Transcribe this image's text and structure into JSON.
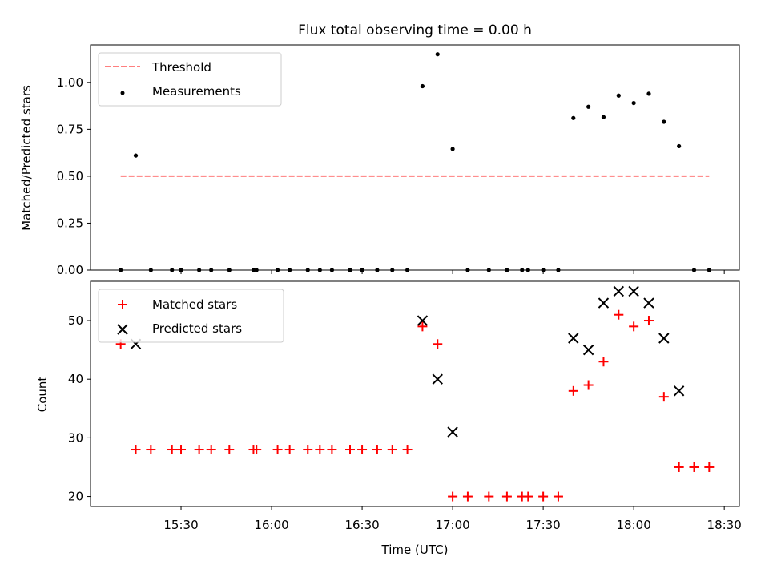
{
  "title": "Flux total observing time = 0.00 h",
  "xlabel": "Time (UTC)",
  "colors": {
    "threshold": "#ff7f7f",
    "measurements": "#000000",
    "matched": "#ff0000",
    "predicted": "#000000"
  },
  "chart_data": [
    {
      "type": "scatter",
      "panel": "top",
      "ylabel": "Matched/Predicted stars",
      "xlim": [
        "15:00",
        "18:35"
      ],
      "ylim": [
        0,
        1.2
      ],
      "yticks": [
        "0.00",
        "0.25",
        "0.50",
        "0.75",
        "1.00"
      ],
      "legend": [
        "Threshold",
        "Measurements"
      ],
      "legend_position": "top-left",
      "threshold": {
        "name": "Threshold",
        "value": 0.5,
        "x": [
          "15:10",
          "18:25"
        ]
      },
      "measurements": {
        "name": "Measurements",
        "x": [
          "15:10",
          "15:15",
          "15:20",
          "15:27",
          "15:30",
          "15:36",
          "15:40",
          "15:46",
          "15:54",
          "15:55",
          "16:02",
          "16:06",
          "16:12",
          "16:16",
          "16:20",
          "16:26",
          "16:30",
          "16:35",
          "16:40",
          "16:45",
          "16:50",
          "16:55",
          "17:00",
          "17:05",
          "17:12",
          "17:18",
          "17:23",
          "17:25",
          "17:30",
          "17:35",
          "17:40",
          "17:45",
          "17:50",
          "17:55",
          "18:00",
          "18:05",
          "18:10",
          "18:15",
          "18:20",
          "18:25"
        ],
        "y": [
          0,
          0.61,
          0,
          0,
          0,
          0,
          0,
          0,
          0,
          0,
          0,
          0,
          0,
          0,
          0,
          0,
          0,
          0,
          0,
          0,
          0.98,
          1.15,
          0.645,
          0,
          0,
          0,
          0,
          0,
          0,
          0,
          0.81,
          0.87,
          0.815,
          0.93,
          0.89,
          0.94,
          0.79,
          0.66,
          0,
          0
        ]
      }
    },
    {
      "type": "scatter",
      "panel": "bottom",
      "ylabel": "Count",
      "xlim": [
        "15:00",
        "18:35"
      ],
      "ylim": [
        18.3,
        56.7
      ],
      "yticks": [
        "20",
        "30",
        "40",
        "50"
      ],
      "xticks": [
        "15:30",
        "16:00",
        "16:30",
        "17:00",
        "17:30",
        "18:00",
        "18:30"
      ],
      "legend": [
        "Matched stars",
        "Predicted stars"
      ],
      "legend_position": "top-left",
      "series": [
        {
          "name": "Matched stars",
          "marker": "+",
          "x": [
            "15:10",
            "15:15",
            "15:20",
            "15:27",
            "15:30",
            "15:36",
            "15:40",
            "15:46",
            "15:54",
            "15:55",
            "16:02",
            "16:06",
            "16:12",
            "16:16",
            "16:20",
            "16:26",
            "16:30",
            "16:35",
            "16:40",
            "16:45",
            "16:50",
            "16:55",
            "17:00",
            "17:05",
            "17:12",
            "17:18",
            "17:23",
            "17:25",
            "17:30",
            "17:35",
            "17:40",
            "17:45",
            "17:50",
            "17:55",
            "18:00",
            "18:05",
            "18:10",
            "18:15",
            "18:20",
            "18:25"
          ],
          "y": [
            46,
            28,
            28,
            28,
            28,
            28,
            28,
            28,
            28,
            28,
            28,
            28,
            28,
            28,
            28,
            28,
            28,
            28,
            28,
            28,
            49,
            46,
            20,
            20,
            20,
            20,
            20,
            20,
            20,
            20,
            38,
            39,
            43,
            51,
            49,
            50,
            37,
            25,
            25,
            25
          ]
        },
        {
          "name": "Predicted stars",
          "marker": "x",
          "x": [
            "15:15",
            "16:50",
            "16:55",
            "17:00",
            "17:40",
            "17:45",
            "17:50",
            "17:55",
            "18:00",
            "18:05",
            "18:10",
            "18:15"
          ],
          "y": [
            46,
            50,
            40,
            31,
            47,
            45,
            53,
            55,
            55,
            53,
            47,
            38
          ]
        }
      ]
    }
  ]
}
